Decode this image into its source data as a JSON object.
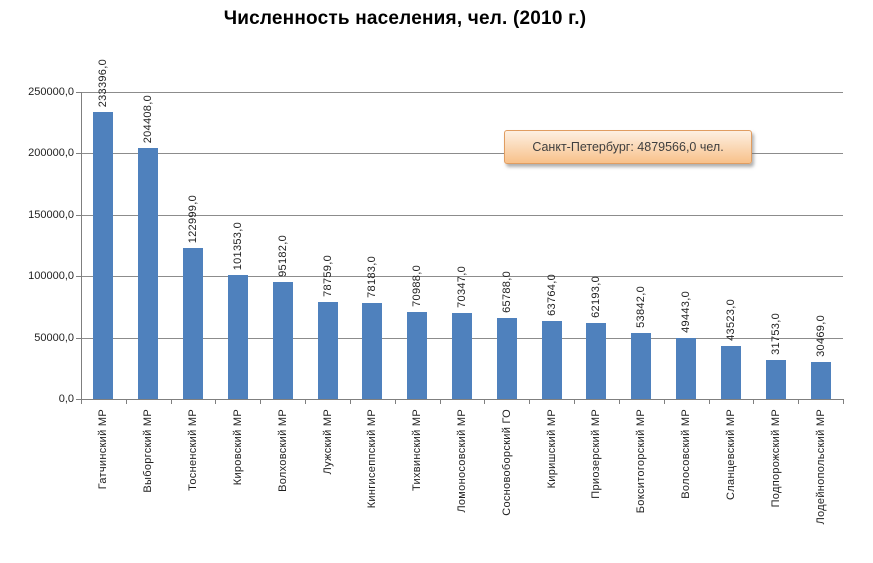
{
  "chart_data": {
    "type": "bar",
    "title": "Численность населения, чел. (2010 г.)",
    "categories": [
      "Гатчинский МР",
      "Выборгский МР",
      "Тосненский МР",
      "Кировский МР",
      "Волховский МР",
      "Лужский МР",
      "Кингисеппский МР",
      "Тихвинский МР",
      "Ломоносовский МР",
      "Сосновоборский ГО",
      "Киришский МР",
      "Приозерский МР",
      "Бокситогорский МР",
      "Волосовский МР",
      "Сланцевский МР",
      "Подпорожский МР",
      "Лодейнопольский МР"
    ],
    "values": [
      233396,
      204408,
      122999,
      101353,
      95182,
      78759,
      78183,
      70988,
      70347,
      65788,
      63764,
      62193,
      53842,
      49443,
      43523,
      31753,
      30469
    ],
    "value_labels": [
      "233396,0",
      "204408,0",
      "122999,0",
      "101353,0",
      "95182,0",
      "78759,0",
      "78183,0",
      "70988,0",
      "70347,0",
      "65788,0",
      "63764,0",
      "62193,0",
      "53842,0",
      "49443,0",
      "43523,0",
      "31753,0",
      "30469,0"
    ],
    "xlabel": "",
    "ylabel": "",
    "ylim": [
      0,
      250000
    ],
    "ytick_step": 50000,
    "ytick_labels": [
      "0,0",
      "50000,0",
      "100000,0",
      "150000,0",
      "200000,0",
      "250000,0"
    ],
    "grid": true,
    "legend": false,
    "annotation": {
      "text": "Санкт-Петербург: 4879566,0 чел."
    }
  },
  "colors": {
    "bar": "#4F81BD",
    "gridline": "#8C8C8C",
    "axis": "#7F7F7F",
    "label_text": "#1F1F1F",
    "callout_border": "#E09D61",
    "callout_bg_top": "#FDF0E2",
    "callout_bg_bottom": "#F8C18A",
    "callout_text": "#3F3F3F"
  }
}
